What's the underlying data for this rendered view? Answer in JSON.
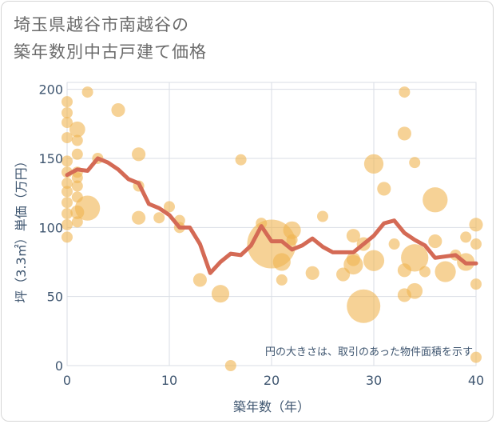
{
  "title_line1": "埼玉県越谷市南越谷の",
  "title_line2": "築年数別中古戸建て価格",
  "chart_data": {
    "type": "scatter",
    "title": "埼玉県越谷市南越谷の築年数別中古戸建て価格",
    "xlabel": "築年数（年）",
    "ylabel": "坪（3.3㎡）単価（万円）",
    "xlim": [
      0,
      40
    ],
    "ylim": [
      0,
      205
    ],
    "xticks": [
      0,
      10,
      20,
      30,
      40
    ],
    "yticks": [
      0,
      50,
      100,
      150,
      200
    ],
    "note": "円の大きさは、取引のあった物件面積を示す",
    "bubble_color": "#f0b450",
    "line_color": "#d46a55",
    "scatter": [
      {
        "x": 0,
        "y": 191,
        "s": 1
      },
      {
        "x": 0,
        "y": 183,
        "s": 1
      },
      {
        "x": 0,
        "y": 176,
        "s": 1
      },
      {
        "x": 0,
        "y": 165,
        "s": 1
      },
      {
        "x": 0,
        "y": 148,
        "s": 1
      },
      {
        "x": 0,
        "y": 140,
        "s": 1
      },
      {
        "x": 0,
        "y": 132,
        "s": 1
      },
      {
        "x": 0,
        "y": 126,
        "s": 1
      },
      {
        "x": 0,
        "y": 118,
        "s": 1
      },
      {
        "x": 0,
        "y": 110,
        "s": 1
      },
      {
        "x": 0,
        "y": 102,
        "s": 1
      },
      {
        "x": 0,
        "y": 93,
        "s": 1
      },
      {
        "x": 1,
        "y": 171,
        "s": 2
      },
      {
        "x": 1,
        "y": 163,
        "s": 1
      },
      {
        "x": 1,
        "y": 153,
        "s": 1
      },
      {
        "x": 1,
        "y": 140,
        "s": 1
      },
      {
        "x": 1,
        "y": 136,
        "s": 1
      },
      {
        "x": 1,
        "y": 130,
        "s": 1
      },
      {
        "x": 1,
        "y": 122,
        "s": 1
      },
      {
        "x": 1,
        "y": 111,
        "s": 1.5
      },
      {
        "x": 1,
        "y": 104,
        "s": 1
      },
      {
        "x": 2,
        "y": 198,
        "s": 1
      },
      {
        "x": 2,
        "y": 114,
        "s": 5
      },
      {
        "x": 3,
        "y": 150,
        "s": 1
      },
      {
        "x": 5,
        "y": 185,
        "s": 1.5
      },
      {
        "x": 7,
        "y": 153,
        "s": 1.5
      },
      {
        "x": 7,
        "y": 130,
        "s": 1
      },
      {
        "x": 7,
        "y": 107,
        "s": 1.5
      },
      {
        "x": 9,
        "y": 107,
        "s": 1
      },
      {
        "x": 10,
        "y": 115,
        "s": 1
      },
      {
        "x": 11,
        "y": 105,
        "s": 1
      },
      {
        "x": 11,
        "y": 100,
        "s": 1
      },
      {
        "x": 13,
        "y": 62,
        "s": 1.5
      },
      {
        "x": 15,
        "y": 52,
        "s": 2.5
      },
      {
        "x": 16,
        "y": 0,
        "s": 1
      },
      {
        "x": 17,
        "y": 149,
        "s": 1
      },
      {
        "x": 19,
        "y": 103,
        "s": 1
      },
      {
        "x": 20,
        "y": 88,
        "s": 19
      },
      {
        "x": 21,
        "y": 75,
        "s": 2.5
      },
      {
        "x": 21,
        "y": 62,
        "s": 1
      },
      {
        "x": 22,
        "y": 98,
        "s": 2.5
      },
      {
        "x": 22,
        "y": 91,
        "s": 1
      },
      {
        "x": 24,
        "y": 67,
        "s": 1.5
      },
      {
        "x": 25,
        "y": 108,
        "s": 1
      },
      {
        "x": 27,
        "y": 66,
        "s": 1.5
      },
      {
        "x": 28,
        "y": 94,
        "s": 1.5
      },
      {
        "x": 28,
        "y": 77,
        "s": 1.5
      },
      {
        "x": 28,
        "y": 73,
        "s": 3
      },
      {
        "x": 29,
        "y": 88,
        "s": 1.5
      },
      {
        "x": 29,
        "y": 43,
        "s": 9
      },
      {
        "x": 30,
        "y": 146,
        "s": 3
      },
      {
        "x": 30,
        "y": 76,
        "s": 3.5
      },
      {
        "x": 31,
        "y": 128,
        "s": 1.5
      },
      {
        "x": 32,
        "y": 88,
        "s": 1
      },
      {
        "x": 33,
        "y": 198,
        "s": 1
      },
      {
        "x": 33,
        "y": 168,
        "s": 1.5
      },
      {
        "x": 33,
        "y": 69,
        "s": 1.5
      },
      {
        "x": 33,
        "y": 51,
        "s": 1.5
      },
      {
        "x": 34,
        "y": 147,
        "s": 1
      },
      {
        "x": 34,
        "y": 78,
        "s": 6
      },
      {
        "x": 34,
        "y": 54,
        "s": 2
      },
      {
        "x": 35,
        "y": 68,
        "s": 1
      },
      {
        "x": 36,
        "y": 120,
        "s": 5
      },
      {
        "x": 36,
        "y": 90,
        "s": 1.5
      },
      {
        "x": 37,
        "y": 68,
        "s": 3.5
      },
      {
        "x": 38,
        "y": 80,
        "s": 1
      },
      {
        "x": 39,
        "y": 93,
        "s": 1
      },
      {
        "x": 39,
        "y": 75,
        "s": 2.5
      },
      {
        "x": 40,
        "y": 102,
        "s": 1.5
      },
      {
        "x": 40,
        "y": 88,
        "s": 1
      },
      {
        "x": 40,
        "y": 59,
        "s": 1
      },
      {
        "x": 40,
        "y": 6,
        "s": 1
      }
    ],
    "line": {
      "x": [
        0,
        1,
        2,
        3,
        4,
        5,
        6,
        7,
        8,
        9,
        10,
        11,
        12,
        13,
        14,
        15,
        16,
        17,
        18,
        19,
        20,
        21,
        22,
        23,
        24,
        25,
        26,
        27,
        28,
        29,
        30,
        31,
        32,
        33,
        34,
        35,
        36,
        37,
        38,
        39,
        40
      ],
      "y": [
        138,
        142,
        141,
        150,
        147,
        142,
        135,
        132,
        117,
        114,
        109,
        100,
        100,
        88,
        67,
        75,
        81,
        80,
        87,
        101,
        90,
        90,
        84,
        87,
        92,
        86,
        82,
        82,
        82,
        88,
        94,
        103,
        105,
        96,
        91,
        87,
        78,
        79,
        80,
        74,
        74
      ]
    }
  }
}
